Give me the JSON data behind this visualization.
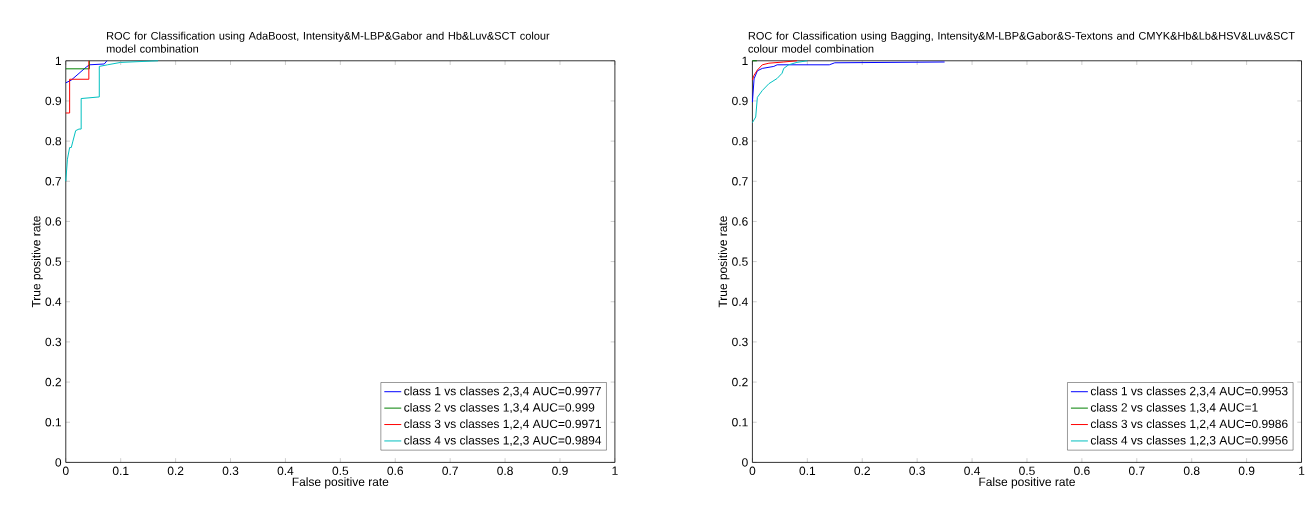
{
  "chart_data": [
    {
      "type": "line",
      "title": "ROC for Classification using AdaBoost, Intensity&M-LBP&Gabor and Hb&Luv&SCT colour model combination",
      "xlabel": "False positive rate",
      "ylabel": "True positive rate",
      "xlim": [
        0,
        1
      ],
      "ylim": [
        0,
        1
      ],
      "xticks": [
        0,
        0.1,
        0.2,
        0.3,
        0.4,
        0.5,
        0.6,
        0.7,
        0.8,
        0.9,
        1
      ],
      "yticks": [
        0,
        0.1,
        0.2,
        0.3,
        0.4,
        0.5,
        0.6,
        0.7,
        0.8,
        0.9,
        1
      ],
      "grid": false,
      "legend": "bottom right",
      "marker": "none",
      "line_style": "solid",
      "series": [
        {
          "name": "class 1 vs classes 2,3,4   AUC=0.9977",
          "color": "#0000ff",
          "x": [
            0,
            0.01,
            0.037,
            0.043,
            0.07,
            0.075
          ],
          "values": [
            0.945,
            0.952,
            0.984,
            0.99,
            0.992,
            1
          ]
        },
        {
          "name": "class 2 vs classes 1,3,4   AUC=0.999",
          "color": "#008000",
          "x": [
            0,
            0.043,
            0.043
          ],
          "values": [
            0.98,
            0.98,
            1
          ]
        },
        {
          "name": "class 3 vs classes 1,2,4   AUC=0.9971",
          "color": "#ff0000",
          "x": [
            0,
            0.007,
            0.007,
            0.042,
            0.042
          ],
          "values": [
            0.87,
            0.87,
            0.954,
            0.954,
            1
          ]
        },
        {
          "name": "class 4 vs classes 1,2,3   AUC=0.9894",
          "color": "#00bfbf",
          "x": [
            0,
            0.003,
            0.007,
            0.01,
            0.013,
            0.018,
            0.024,
            0.028,
            0.028,
            0.061,
            0.061,
            0.076,
            0.1,
            0.168
          ],
          "values": [
            0.7,
            0.755,
            0.784,
            0.784,
            0.8,
            0.826,
            0.83,
            0.83,
            0.906,
            0.91,
            0.986,
            0.99,
            0.996,
            1
          ]
        }
      ]
    },
    {
      "type": "line",
      "title": "ROC for Classification using Bagging, Intensity&M-LBP&Gabor&S-Textons and CMYK&Hb&Lb&HSV&Luv&SCT colour model combination",
      "xlabel": "False positive rate",
      "ylabel": "True positive rate",
      "xlim": [
        0,
        1
      ],
      "ylim": [
        0,
        1
      ],
      "xticks": [
        0,
        0.1,
        0.2,
        0.3,
        0.4,
        0.5,
        0.6,
        0.7,
        0.8,
        0.9,
        1
      ],
      "yticks": [
        0,
        0.1,
        0.2,
        0.3,
        0.4,
        0.5,
        0.6,
        0.7,
        0.8,
        0.9,
        1
      ],
      "grid": false,
      "legend": "bottom right",
      "marker": "none",
      "line_style": "solid",
      "series": [
        {
          "name": "class 1 vs classes 2,3,4   AUC=0.9953",
          "color": "#0000ff",
          "x": [
            0,
            0.003,
            0.009,
            0.018,
            0.039,
            0.045,
            0.14,
            0.15,
            0.35
          ],
          "values": [
            0.897,
            0.955,
            0.975,
            0.981,
            0.986,
            0.99,
            0.99,
            0.995,
            0.997
          ]
        },
        {
          "name": "class 2 vs classes 1,3,4   AUC=1",
          "color": "#008000",
          "x": [
            0,
            0.008
          ],
          "values": [
            1,
            1
          ]
        },
        {
          "name": "class 3 vs classes 1,2,4   AUC=0.9986",
          "color": "#ff0000",
          "x": [
            0,
            0.003,
            0.009,
            0.018,
            0.03,
            0.057,
            0.081
          ],
          "values": [
            0.952,
            0.964,
            0.977,
            0.99,
            0.994,
            0.997,
            1
          ]
        },
        {
          "name": "class 4 vs classes 1,2,3   AUC=0.9956",
          "color": "#00bfbf",
          "x": [
            0,
            0.006,
            0.009,
            0.018,
            0.03,
            0.045,
            0.054,
            0.057,
            0.066,
            0.081,
            0.1
          ],
          "values": [
            0.846,
            0.86,
            0.909,
            0.926,
            0.943,
            0.956,
            0.969,
            0.981,
            0.99,
            0.996,
            1
          ]
        }
      ]
    }
  ]
}
